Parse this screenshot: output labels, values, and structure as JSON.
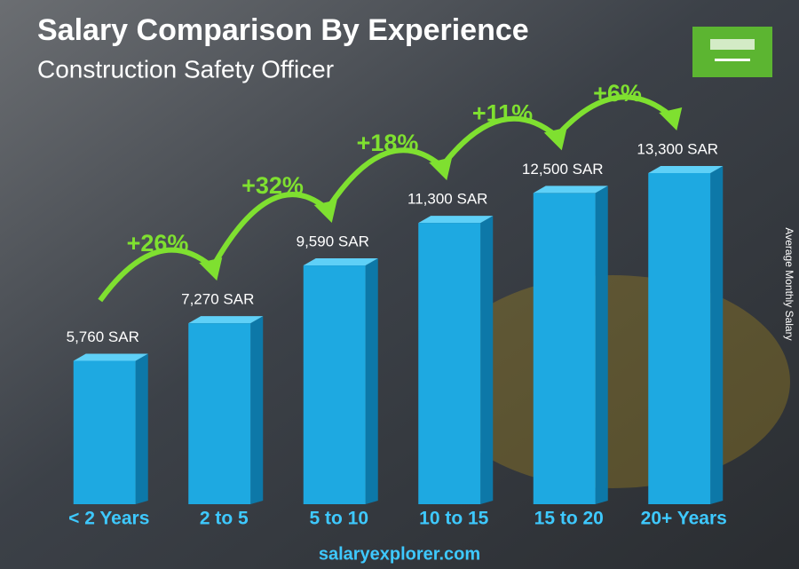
{
  "chart_data": {
    "type": "bar",
    "title": "Salary Comparison By Experience",
    "subtitle": "Construction Safety Officer",
    "y_axis_label": "Average Monthly Salary",
    "categories": [
      "< 2 Years",
      "2 to 5",
      "5 to 10",
      "10 to 15",
      "15 to 20",
      "20+ Years"
    ],
    "values": [
      5760,
      7270,
      9590,
      11300,
      12500,
      13300
    ],
    "value_labels": [
      "5,760 SAR",
      "7,270 SAR",
      "9,590 SAR",
      "11,300 SAR",
      "12,500 SAR",
      "13,300 SAR"
    ],
    "changes": [
      "+26%",
      "+32%",
      "+18%",
      "+11%",
      "+6%"
    ],
    "color": "#1ea9e1",
    "source": "salaryexplorer.com"
  }
}
